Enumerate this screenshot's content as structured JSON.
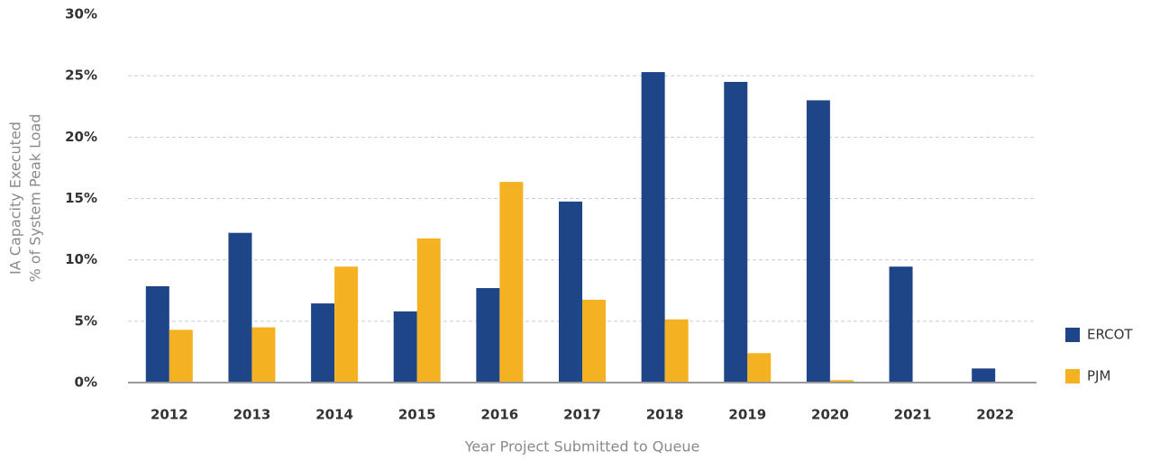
{
  "chart_data": {
    "type": "bar",
    "ylabel": [
      "IA Capacity Executed",
      "% of System Peak Load"
    ],
    "xlabel": "Year Project Submitted to Queue",
    "categories": [
      "2012",
      "2013",
      "2014",
      "2015",
      "2016",
      "2017",
      "2018",
      "2019",
      "2020",
      "2021",
      "2022"
    ],
    "series": [
      {
        "name": "ERCOT",
        "color": "#1f4589",
        "values": [
          7.85,
          12.2,
          6.45,
          5.8,
          7.7,
          14.75,
          25.3,
          24.5,
          23.0,
          9.45,
          1.15
        ]
      },
      {
        "name": "PJM",
        "color": "#f4b223",
        "values": [
          4.3,
          4.5,
          9.45,
          11.75,
          16.35,
          6.75,
          5.15,
          2.4,
          0.2,
          0,
          0
        ]
      }
    ],
    "ylim": [
      0,
      30
    ],
    "yticks": [
      {
        "value": 0,
        "label": "0%"
      },
      {
        "value": 5,
        "label": "5%"
      },
      {
        "value": 10,
        "label": "10%"
      },
      {
        "value": 15,
        "label": "15%"
      },
      {
        "value": 20,
        "label": "20%"
      },
      {
        "value": 25,
        "label": "25%"
      },
      {
        "value": 30,
        "label": "30%"
      }
    ],
    "grid": true,
    "legend": "right"
  }
}
